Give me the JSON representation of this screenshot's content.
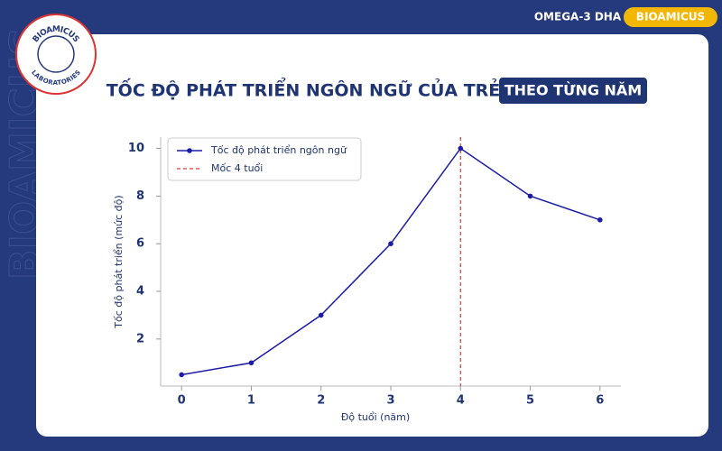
{
  "header": {
    "product": "OMEGA-3 DHA",
    "brand": "BIOAMICUS",
    "logo_top": "BIOAMICUS",
    "logo_bottom": "LABORATORIES",
    "watermark": "BIOAMICUS"
  },
  "chart_data": {
    "type": "line",
    "title": "TỐC ĐỘ PHÁT TRIỂN NGÔN NGỮ CỦA TRẺ",
    "subtitle": "THEO TỪNG NĂM",
    "x_label": "Độ tuổi (năm)",
    "y_label": "Tốc độ phát triển (mức độ)",
    "x": [
      0,
      1,
      2,
      3,
      4,
      5,
      6
    ],
    "series": [
      {
        "name": "Tốc độ phát triển ngôn ngữ",
        "color": "#1c1ca8",
        "values": [
          0.5,
          1,
          3,
          6,
          10,
          8,
          7
        ]
      }
    ],
    "reference_line": {
      "x": 4,
      "name": "Mốc 4 tuổi",
      "color": "#e03a3a"
    },
    "xlim": [
      -0.3,
      6.3
    ],
    "xticks": [
      0,
      1,
      2,
      3,
      4,
      5,
      6
    ],
    "ylim": [
      0.025,
      10.475
    ],
    "yticks": [
      2,
      4,
      6,
      8,
      10
    ],
    "grid": false,
    "legend": "upper left"
  }
}
